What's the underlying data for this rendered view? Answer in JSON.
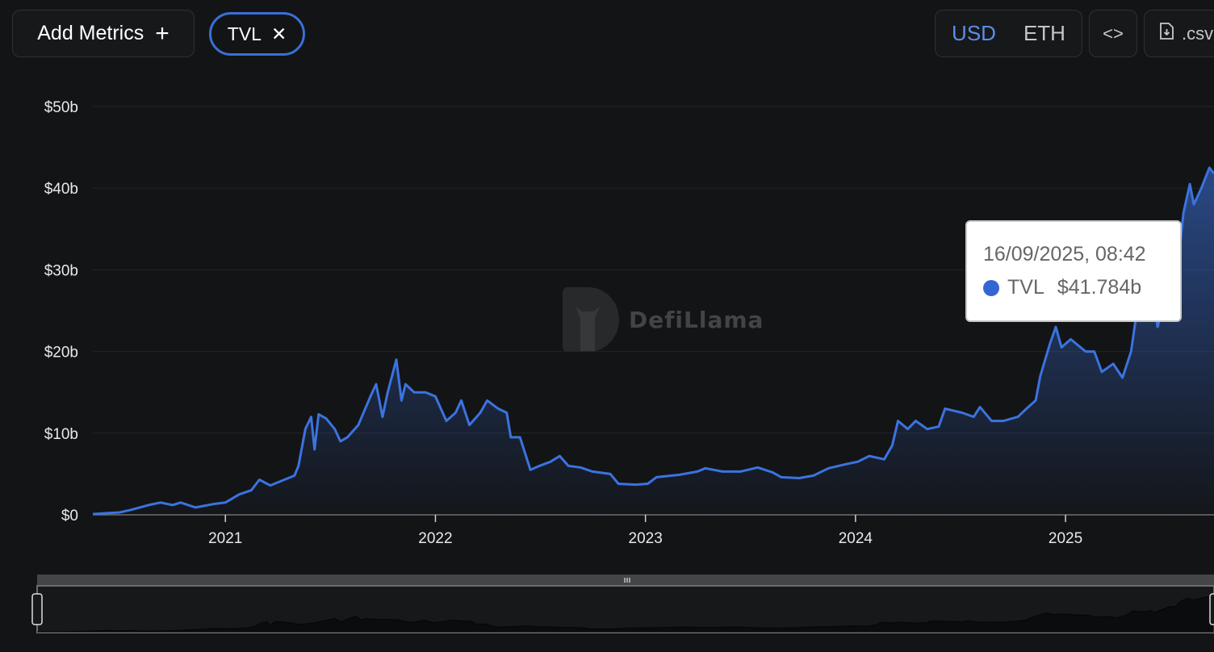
{
  "toolbar": {
    "add_metrics_label": "Add Metrics",
    "add_icon": "plus-icon",
    "metric_chip_label": "TVL",
    "remove_icon": "close-icon",
    "currency_options": [
      "USD",
      "ETH"
    ],
    "currency_selected": "USD",
    "embed_icon": "code-icon",
    "embed_label": "<>",
    "csv_icon": "file-download-icon",
    "csv_label": ".csv"
  },
  "watermark": {
    "text": "DefiLlama"
  },
  "tooltip": {
    "date": "16/09/2025, 08:42",
    "series": "TVL",
    "value": "$41.784b"
  },
  "colors": {
    "line": "#3b73e0",
    "accent": "#5b8ee8",
    "chip_border": "#3a6fd8",
    "tooltip_dot": "#3466d3"
  },
  "chart_data": {
    "type": "area",
    "title": "",
    "xlabel": "",
    "ylabel": "",
    "y_ticks": [
      "$0",
      "$10b",
      "$20b",
      "$30b",
      "$40b",
      "$50b"
    ],
    "ylim": [
      0,
      50
    ],
    "y_unit": "USD billions",
    "x_ticks": [
      "2021",
      "2022",
      "2023",
      "2024",
      "2025"
    ],
    "xlim": [
      "2020-05-15",
      "2025-09-16"
    ],
    "grid": true,
    "series": [
      {
        "name": "TVL",
        "points": [
          [
            "2020-05-15",
            0.1
          ],
          [
            "2020-07-01",
            0.3
          ],
          [
            "2020-07-20",
            0.6
          ],
          [
            "2020-08-20",
            1.2
          ],
          [
            "2020-09-10",
            1.5
          ],
          [
            "2020-10-01",
            1.2
          ],
          [
            "2020-10-15",
            1.5
          ],
          [
            "2020-11-10",
            0.9
          ],
          [
            "2020-12-10",
            1.3
          ],
          [
            "2021-01-01",
            1.5
          ],
          [
            "2021-01-25",
            2.5
          ],
          [
            "2021-02-15",
            3.0
          ],
          [
            "2021-03-01",
            4.3
          ],
          [
            "2021-03-20",
            3.6
          ],
          [
            "2021-04-10",
            4.2
          ],
          [
            "2021-05-01",
            4.8
          ],
          [
            "2021-05-08",
            6.0
          ],
          [
            "2021-05-20",
            10.5
          ],
          [
            "2021-05-30",
            12.0
          ],
          [
            "2021-06-05",
            8.0
          ],
          [
            "2021-06-12",
            12.3
          ],
          [
            "2021-06-25",
            11.8
          ],
          [
            "2021-07-10",
            10.5
          ],
          [
            "2021-07-20",
            9.0
          ],
          [
            "2021-08-01",
            9.5
          ],
          [
            "2021-08-20",
            11.0
          ],
          [
            "2021-09-01",
            13.0
          ],
          [
            "2021-09-10",
            14.5
          ],
          [
            "2021-09-20",
            16.0
          ],
          [
            "2021-10-01",
            12.0
          ],
          [
            "2021-10-10",
            15.0
          ],
          [
            "2021-10-25",
            19.0
          ],
          [
            "2021-11-03",
            14.0
          ],
          [
            "2021-11-10",
            16.0
          ],
          [
            "2021-11-25",
            15.0
          ],
          [
            "2021-12-15",
            15.0
          ],
          [
            "2022-01-01",
            14.5
          ],
          [
            "2022-01-20",
            11.5
          ],
          [
            "2022-02-05",
            12.5
          ],
          [
            "2022-02-15",
            14.0
          ],
          [
            "2022-03-01",
            11.0
          ],
          [
            "2022-03-20",
            12.5
          ],
          [
            "2022-04-01",
            14.0
          ],
          [
            "2022-04-20",
            13.0
          ],
          [
            "2022-05-05",
            12.5
          ],
          [
            "2022-05-12",
            9.5
          ],
          [
            "2022-05-28",
            9.5
          ],
          [
            "2022-06-15",
            5.5
          ],
          [
            "2022-07-01",
            6.0
          ],
          [
            "2022-07-20",
            6.5
          ],
          [
            "2022-08-05",
            7.2
          ],
          [
            "2022-08-20",
            6.0
          ],
          [
            "2022-09-10",
            5.8
          ],
          [
            "2022-10-01",
            5.3
          ],
          [
            "2022-11-01",
            5.0
          ],
          [
            "2022-11-15",
            3.8
          ],
          [
            "2022-12-15",
            3.7
          ],
          [
            "2023-01-05",
            3.8
          ],
          [
            "2023-01-20",
            4.6
          ],
          [
            "2023-03-01",
            4.9
          ],
          [
            "2023-04-01",
            5.3
          ],
          [
            "2023-04-15",
            5.7
          ],
          [
            "2023-05-15",
            5.3
          ],
          [
            "2023-06-15",
            5.3
          ],
          [
            "2023-07-15",
            5.8
          ],
          [
            "2023-08-10",
            5.2
          ],
          [
            "2023-08-25",
            4.6
          ],
          [
            "2023-09-25",
            4.5
          ],
          [
            "2023-10-20",
            4.8
          ],
          [
            "2023-11-15",
            5.7
          ],
          [
            "2023-12-15",
            6.2
          ],
          [
            "2024-01-05",
            6.5
          ],
          [
            "2024-01-25",
            7.2
          ],
          [
            "2024-02-20",
            6.8
          ],
          [
            "2024-03-05",
            8.5
          ],
          [
            "2024-03-15",
            11.5
          ],
          [
            "2024-04-01",
            10.5
          ],
          [
            "2024-04-15",
            11.5
          ],
          [
            "2024-05-05",
            10.5
          ],
          [
            "2024-05-25",
            10.8
          ],
          [
            "2024-06-05",
            13.0
          ],
          [
            "2024-07-05",
            12.5
          ],
          [
            "2024-07-25",
            12.0
          ],
          [
            "2024-08-05",
            13.2
          ],
          [
            "2024-08-25",
            11.5
          ],
          [
            "2024-09-15",
            11.5
          ],
          [
            "2024-10-10",
            12.0
          ],
          [
            "2024-10-25",
            13.0
          ],
          [
            "2024-11-10",
            14.0
          ],
          [
            "2024-11-18",
            17.0
          ],
          [
            "2024-12-05",
            21.0
          ],
          [
            "2024-12-15",
            23.0
          ],
          [
            "2024-12-25",
            20.5
          ],
          [
            "2025-01-10",
            21.5
          ],
          [
            "2025-02-05",
            20.0
          ],
          [
            "2025-02-20",
            20.0
          ],
          [
            "2025-03-05",
            17.5
          ],
          [
            "2025-03-25",
            18.5
          ],
          [
            "2025-04-10",
            16.8
          ],
          [
            "2025-04-25",
            20.0
          ],
          [
            "2025-05-05",
            25.0
          ],
          [
            "2025-05-25",
            24.0
          ],
          [
            "2025-06-05",
            25.5
          ],
          [
            "2025-06-10",
            23.0
          ],
          [
            "2025-07-05",
            30.0
          ],
          [
            "2025-07-15",
            30.5
          ],
          [
            "2025-07-25",
            37.0
          ],
          [
            "2025-08-05",
            40.5
          ],
          [
            "2025-08-12",
            38.0
          ],
          [
            "2025-08-25",
            40.0
          ],
          [
            "2025-09-08",
            42.5
          ],
          [
            "2025-09-16",
            41.784
          ]
        ]
      }
    ]
  }
}
